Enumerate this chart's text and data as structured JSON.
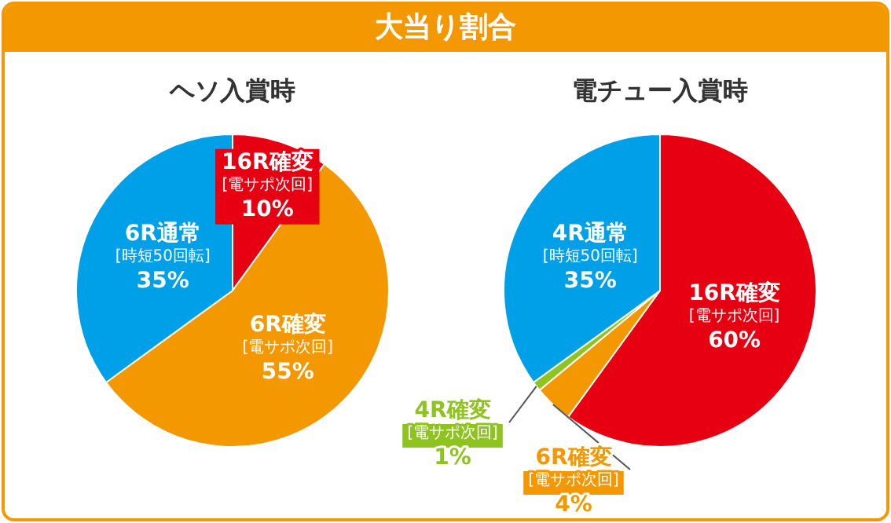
{
  "chart_data": [
    {
      "type": "other",
      "title": "大当り割合"
    },
    {
      "type": "pie",
      "title": "ヘソ入賞時",
      "categories": [
        "16R確変 [電サポ次回]",
        "6R確変 [電サポ次回]",
        "6R通常 [時短50回転]"
      ],
      "values": [
        10,
        55,
        35
      ],
      "value_labels": [
        "10%",
        "55%",
        "35%"
      ],
      "colors": [
        "#e60012",
        "#f39800",
        "#00a0e9"
      ],
      "legend": false
    },
    {
      "type": "pie",
      "title": "電チュー入賞時",
      "categories": [
        "16R確変 [電サポ次回]",
        "6R確変 [電サポ次回]",
        "4R確変 [電サポ次回]",
        "4R通常 [時短50回転]"
      ],
      "values": [
        60,
        4,
        1,
        35
      ],
      "value_labels": [
        "60%",
        "4%",
        "1%",
        "35%"
      ],
      "colors": [
        "#e60012",
        "#f39800",
        "#8fc31f",
        "#00a0e9"
      ],
      "legend": false
    }
  ]
}
